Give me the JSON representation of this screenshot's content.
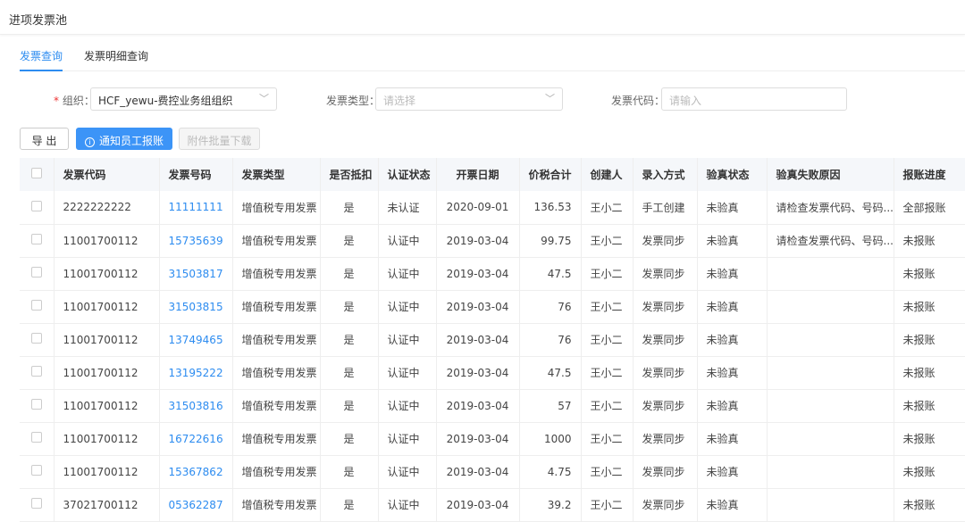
{
  "header": {
    "title": "进项发票池"
  },
  "tabs": [
    {
      "label": "发票查询",
      "active": true
    },
    {
      "label": "发票明细查询",
      "active": false
    }
  ],
  "filters": {
    "org": {
      "required_mark": "*",
      "label": "组织：",
      "value": "HCF_yewu-费控业务组组织"
    },
    "type": {
      "label": "发票类型：",
      "placeholder": "请选择"
    },
    "code": {
      "label": "发票代码：",
      "placeholder": "请输入"
    }
  },
  "toolbar": {
    "export": "导 出",
    "notify": "通知员工报账",
    "download": "附件批量下载"
  },
  "accent": "#2d8cf0",
  "table": {
    "columns": [
      "发票代码",
      "发票号码",
      "发票类型",
      "是否抵扣",
      "认证状态",
      "开票日期",
      "价税合计",
      "创建人",
      "录入方式",
      "验真状态",
      "验真失败原因",
      "报账进度"
    ],
    "rows": [
      [
        "2222222222",
        "11111111",
        "增值税专用发票",
        "是",
        "未认证",
        "2020-09-01",
        "136.53",
        "王小二",
        "手工创建",
        "未验真",
        "请检查发票代码、号码...",
        "全部报账"
      ],
      [
        "11001700112",
        "15735639",
        "增值税专用发票",
        "是",
        "认证中",
        "2019-03-04",
        "99.75",
        "王小二",
        "发票同步",
        "未验真",
        "请检查发票代码、号码...",
        "未报账"
      ],
      [
        "11001700112",
        "31503817",
        "增值税专用发票",
        "是",
        "认证中",
        "2019-03-04",
        "47.5",
        "王小二",
        "发票同步",
        "未验真",
        "",
        "未报账"
      ],
      [
        "11001700112",
        "31503815",
        "增值税专用发票",
        "是",
        "认证中",
        "2019-03-04",
        "76",
        "王小二",
        "发票同步",
        "未验真",
        "",
        "未报账"
      ],
      [
        "11001700112",
        "13749465",
        "增值税专用发票",
        "是",
        "认证中",
        "2019-03-04",
        "76",
        "王小二",
        "发票同步",
        "未验真",
        "",
        "未报账"
      ],
      [
        "11001700112",
        "13195222",
        "增值税专用发票",
        "是",
        "认证中",
        "2019-03-04",
        "47.5",
        "王小二",
        "发票同步",
        "未验真",
        "",
        "未报账"
      ],
      [
        "11001700112",
        "31503816",
        "增值税专用发票",
        "是",
        "认证中",
        "2019-03-04",
        "57",
        "王小二",
        "发票同步",
        "未验真",
        "",
        "未报账"
      ],
      [
        "11001700112",
        "16722616",
        "增值税专用发票",
        "是",
        "认证中",
        "2019-03-04",
        "1000",
        "王小二",
        "发票同步",
        "未验真",
        "",
        "未报账"
      ],
      [
        "11001700112",
        "15367862",
        "增值税专用发票",
        "是",
        "认证中",
        "2019-03-04",
        "4.75",
        "王小二",
        "发票同步",
        "未验真",
        "",
        "未报账"
      ],
      [
        "37021700112",
        "05362287",
        "增值税专用发票",
        "是",
        "认证中",
        "2019-03-04",
        "39.2",
        "王小二",
        "发票同步",
        "未验真",
        "",
        "未报账"
      ]
    ]
  }
}
